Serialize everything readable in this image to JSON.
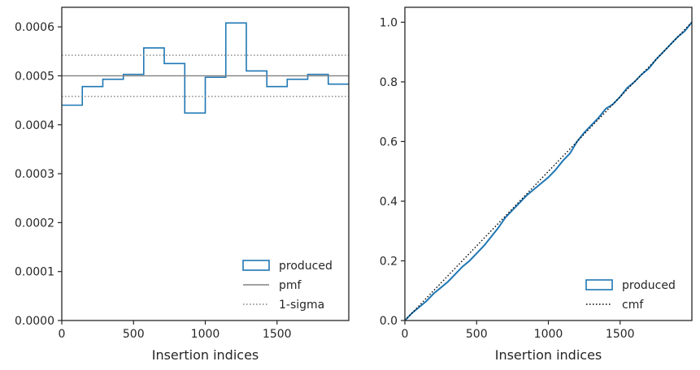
{
  "chart_data": [
    {
      "type": "histogram-step",
      "xlabel": "Insertion indices",
      "ylabel": "",
      "xlim": [
        0,
        2000
      ],
      "ylim": [
        0,
        0.00064
      ],
      "xticks": [
        0,
        500,
        1000,
        1500
      ],
      "yticks": [
        0,
        0.0001,
        0.0002,
        0.0003,
        0.0004,
        0.0005,
        0.0006
      ],
      "ytick_labels": [
        "0.0000",
        "0.0001",
        "0.0002",
        "0.0003",
        "0.0004",
        "0.0005",
        "0.0006"
      ],
      "bin_edges": [
        0,
        143,
        286,
        429,
        571,
        714,
        857,
        1000,
        1143,
        1286,
        1429,
        1571,
        1714,
        1857,
        2000
      ],
      "series": [
        {
          "name": "produced",
          "kind": "step-histogram",
          "color": "#1f77b4",
          "values": [
            0.00044,
            0.000478,
            0.000493,
            0.000503,
            0.000557,
            0.000525,
            0.000424,
            0.000497,
            0.000608,
            0.00051,
            0.000478,
            0.000493,
            0.000503,
            0.000483
          ]
        },
        {
          "name": "pmf",
          "kind": "hline",
          "color": "#808080",
          "value": 0.0005
        },
        {
          "name": "1-sigma",
          "kind": "hline-dotted",
          "color": "#808080",
          "values": [
            0.000542,
            0.000458
          ]
        }
      ],
      "legend": {
        "placement": "lower-right",
        "entries": [
          "produced",
          "pmf",
          "1-sigma"
        ]
      }
    },
    {
      "type": "line",
      "xlabel": "Insertion indices",
      "ylabel": "",
      "xlim": [
        0,
        2000
      ],
      "ylim": [
        0,
        1.05
      ],
      "xticks": [
        0,
        500,
        1000,
        1500
      ],
      "yticks": [
        0.0,
        0.2,
        0.4,
        0.6,
        0.8,
        1.0
      ],
      "ytick_labels": [
        "0.0",
        "0.2",
        "0.4",
        "0.6",
        "0.8",
        "1.0"
      ],
      "series": [
        {
          "name": "produced",
          "kind": "line",
          "color": "#1f77b4",
          "x": [
            0,
            50,
            100,
            150,
            200,
            250,
            300,
            350,
            400,
            450,
            500,
            550,
            600,
            650,
            700,
            750,
            800,
            850,
            900,
            950,
            1000,
            1050,
            1100,
            1150,
            1200,
            1250,
            1300,
            1350,
            1400,
            1450,
            1500,
            1550,
            1600,
            1650,
            1700,
            1750,
            1800,
            1850,
            1900,
            1950,
            2000
          ],
          "y": [
            0.0,
            0.025,
            0.045,
            0.065,
            0.09,
            0.11,
            0.13,
            0.155,
            0.18,
            0.2,
            0.225,
            0.25,
            0.28,
            0.31,
            0.345,
            0.37,
            0.395,
            0.42,
            0.44,
            0.46,
            0.48,
            0.505,
            0.535,
            0.56,
            0.6,
            0.63,
            0.655,
            0.68,
            0.71,
            0.725,
            0.75,
            0.78,
            0.8,
            0.825,
            0.845,
            0.875,
            0.9,
            0.925,
            0.95,
            0.97,
            1.0
          ]
        },
        {
          "name": "cmf",
          "kind": "line-dotted",
          "color": "#000000",
          "x": [
            0,
            2000
          ],
          "y": [
            0.0,
            1.0
          ]
        }
      ],
      "legend": {
        "placement": "lower-right",
        "entries": [
          "produced",
          "cmf"
        ]
      }
    }
  ]
}
